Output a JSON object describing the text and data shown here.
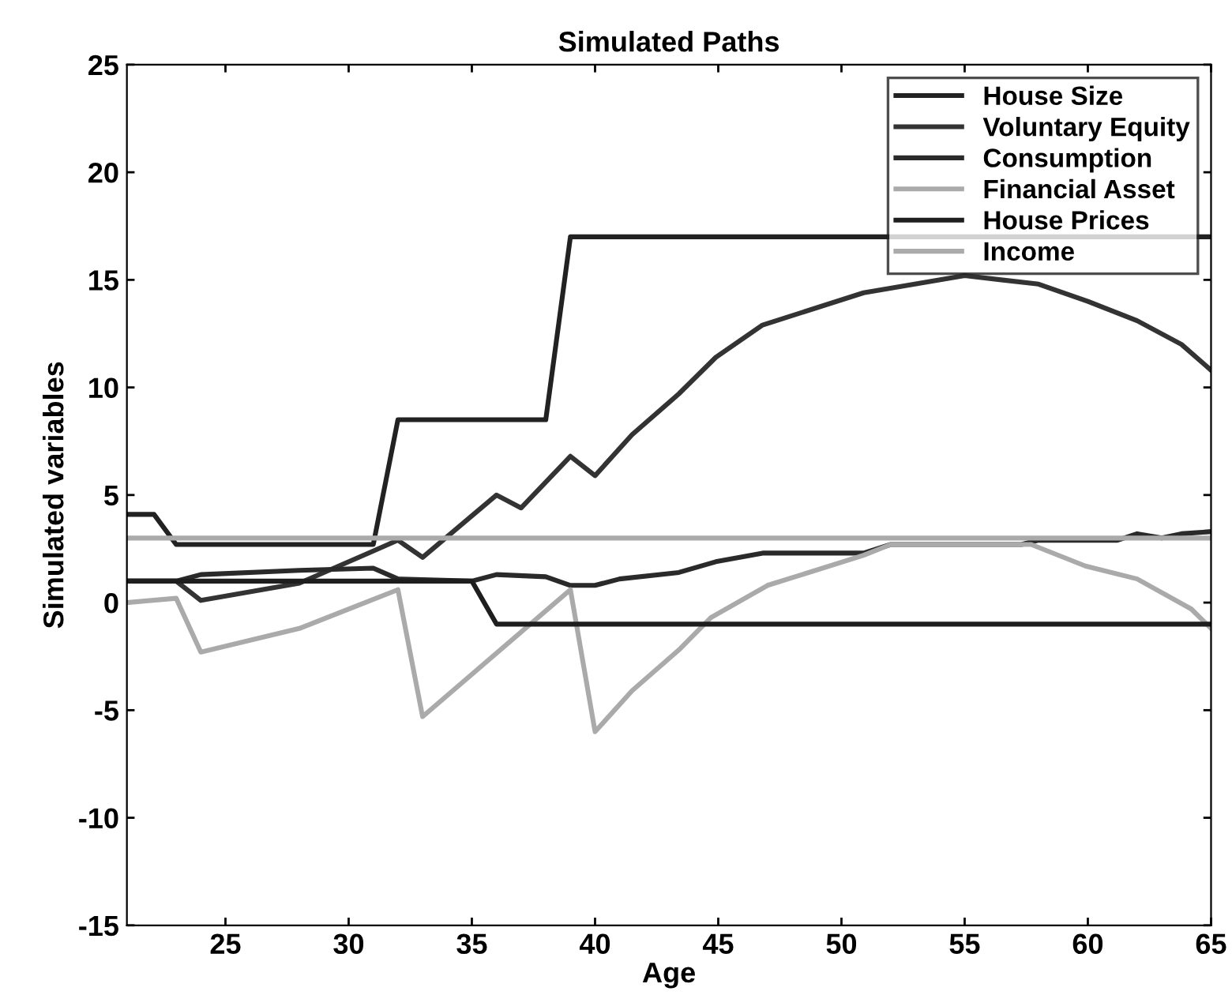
{
  "chart_data": {
    "type": "line",
    "title": "Simulated Paths",
    "xlabel": "Age",
    "ylabel": "Simulated variables",
    "xlim": [
      21,
      65
    ],
    "xticks": [
      25,
      30,
      35,
      40,
      45,
      50,
      55,
      60,
      65
    ],
    "ylim": [
      -15,
      25
    ],
    "yticks": [
      -15,
      -10,
      -5,
      0,
      5,
      10,
      15,
      20,
      25
    ],
    "grid": false,
    "legend": "top right",
    "line_style": "solid",
    "series": [
      {
        "name": "House Size",
        "color": "#222222",
        "x": [
          21,
          22.1,
          23,
          31,
          32,
          38,
          39,
          65
        ],
        "values": [
          4.1,
          4.1,
          2.7,
          2.7,
          8.5,
          8.5,
          17,
          17
        ]
      },
      {
        "name": "Voluntary Equity",
        "color": "#333333",
        "x": [
          21,
          23,
          24,
          28,
          31,
          32,
          33,
          36,
          37,
          39,
          40,
          41.5,
          43.4,
          44.9,
          46.8,
          50.9,
          55,
          58,
          60,
          62,
          63.8,
          65
        ],
        "values": [
          1.0,
          1.0,
          0.1,
          0.9,
          2.4,
          2.9,
          2.1,
          5.0,
          4.4,
          6.8,
          5.9,
          7.8,
          9.7,
          11.4,
          12.9,
          14.4,
          15.2,
          14.8,
          14.0,
          13.1,
          12.0,
          10.8
        ]
      },
      {
        "name": "Consumption",
        "color": "#2a2a2a",
        "x": [
          21,
          23,
          24,
          28,
          31,
          32,
          35,
          36,
          38,
          39,
          40,
          41,
          43.4,
          44.9,
          46.8,
          50.9,
          52,
          57.3,
          58,
          61.2,
          62,
          63,
          63.8,
          65
        ],
        "values": [
          1.0,
          1.0,
          1.3,
          1.5,
          1.6,
          1.1,
          1.0,
          1.3,
          1.2,
          0.8,
          0.8,
          1.1,
          1.4,
          1.9,
          2.3,
          2.3,
          2.7,
          2.7,
          2.9,
          2.9,
          3.2,
          3.0,
          3.2,
          3.3
        ]
      },
      {
        "name": "Financial Asset",
        "color": "#aaaaaa",
        "x": [
          21,
          23,
          24,
          28,
          32,
          33,
          39,
          40,
          41.5,
          43.4,
          44.7,
          47,
          50.9,
          52,
          57.7,
          59.9,
          62,
          64.2,
          65
        ],
        "values": [
          0.0,
          0.2,
          -2.3,
          -1.2,
          0.6,
          -5.3,
          0.6,
          -6.0,
          -4.1,
          -2.2,
          -0.7,
          0.8,
          2.2,
          2.7,
          2.7,
          1.7,
          1.1,
          -0.3,
          -1.2
        ]
      },
      {
        "name": "House Prices",
        "color": "#1e1e1e",
        "x": [
          21,
          35,
          36,
          65
        ],
        "values": [
          1.0,
          1.0,
          -1.0,
          -1.0
        ]
      },
      {
        "name": "Income",
        "color": "#aaaaaa",
        "x": [
          21,
          65
        ],
        "values": [
          3.0,
          3.0
        ]
      }
    ]
  }
}
